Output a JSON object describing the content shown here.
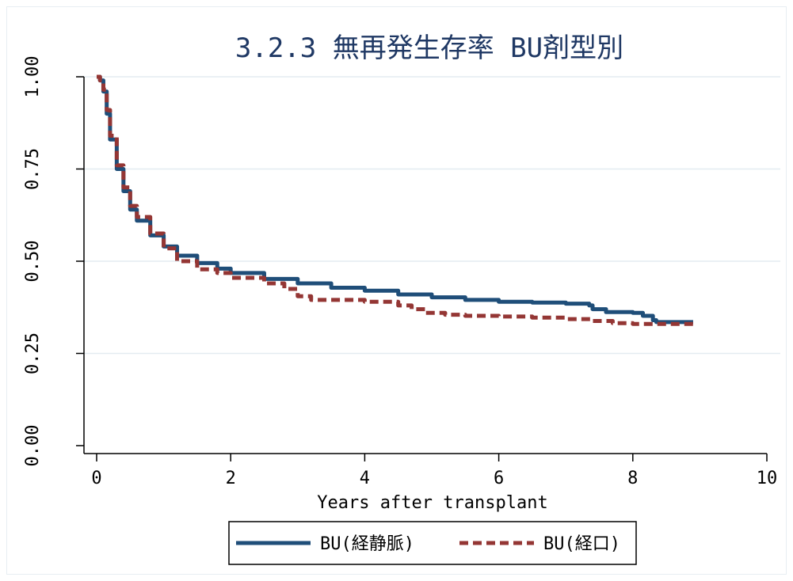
{
  "chart_data": {
    "type": "line",
    "title": "3.2.3 無再発生存率 BU剤型別",
    "xlabel": "Years after transplant",
    "ylabel": "",
    "xlim": [
      0,
      10
    ],
    "ylim": [
      0,
      1
    ],
    "x_ticks": [
      "0",
      "2",
      "4",
      "6",
      "8",
      "10"
    ],
    "y_ticks": [
      "0.00",
      "0.25",
      "0.50",
      "0.75",
      "1.00"
    ],
    "grid": "horizontal",
    "legend_position": "bottom",
    "series": [
      {
        "name": "BU(経静脈)",
        "color": "#1f4e79",
        "style": "solid",
        "points": [
          [
            0,
            1.0
          ],
          [
            0.05,
            0.99
          ],
          [
            0.1,
            0.96
          ],
          [
            0.15,
            0.9
          ],
          [
            0.2,
            0.83
          ],
          [
            0.3,
            0.75
          ],
          [
            0.4,
            0.69
          ],
          [
            0.5,
            0.64
          ],
          [
            0.6,
            0.61
          ],
          [
            0.8,
            0.57
          ],
          [
            1.0,
            0.54
          ],
          [
            1.2,
            0.515
          ],
          [
            1.5,
            0.495
          ],
          [
            1.8,
            0.48
          ],
          [
            2.0,
            0.468
          ],
          [
            2.5,
            0.452
          ],
          [
            3.0,
            0.44
          ],
          [
            3.5,
            0.428
          ],
          [
            4.0,
            0.42
          ],
          [
            4.5,
            0.41
          ],
          [
            5.0,
            0.402
          ],
          [
            5.5,
            0.395
          ],
          [
            6.0,
            0.39
          ],
          [
            6.5,
            0.388
          ],
          [
            7.0,
            0.385
          ],
          [
            7.35,
            0.38
          ],
          [
            7.4,
            0.37
          ],
          [
            7.6,
            0.362
          ],
          [
            8.0,
            0.36
          ],
          [
            8.15,
            0.352
          ],
          [
            8.3,
            0.34
          ],
          [
            8.35,
            0.335
          ],
          [
            8.9,
            0.335
          ]
        ]
      },
      {
        "name": "BU(経口)",
        "color": "#943634",
        "style": "dashed",
        "points": [
          [
            0,
            1.0
          ],
          [
            0.05,
            0.99
          ],
          [
            0.1,
            0.965
          ],
          [
            0.15,
            0.91
          ],
          [
            0.2,
            0.84
          ],
          [
            0.3,
            0.76
          ],
          [
            0.4,
            0.7
          ],
          [
            0.5,
            0.65
          ],
          [
            0.6,
            0.62
          ],
          [
            0.8,
            0.575
          ],
          [
            1.0,
            0.535
          ],
          [
            1.2,
            0.5
          ],
          [
            1.5,
            0.478
          ],
          [
            1.8,
            0.468
          ],
          [
            2.0,
            0.455
          ],
          [
            2.5,
            0.44
          ],
          [
            2.8,
            0.425
          ],
          [
            3.0,
            0.405
          ],
          [
            3.2,
            0.395
          ],
          [
            3.5,
            0.395
          ],
          [
            4.0,
            0.39
          ],
          [
            4.5,
            0.38
          ],
          [
            4.7,
            0.37
          ],
          [
            4.9,
            0.36
          ],
          [
            5.2,
            0.355
          ],
          [
            5.5,
            0.352
          ],
          [
            6.0,
            0.35
          ],
          [
            6.5,
            0.347
          ],
          [
            7.0,
            0.343
          ],
          [
            7.4,
            0.338
          ],
          [
            7.7,
            0.332
          ],
          [
            8.0,
            0.33
          ],
          [
            8.9,
            0.33
          ]
        ]
      }
    ]
  }
}
